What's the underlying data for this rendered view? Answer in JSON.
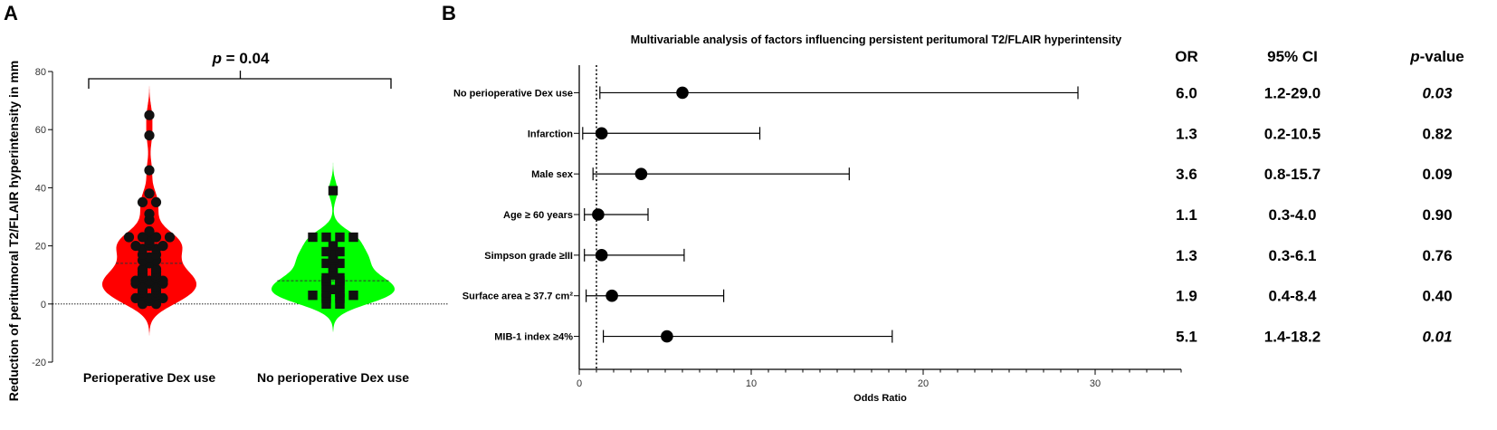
{
  "panel_a_letter": "A",
  "panel_b_letter": "B",
  "chart_data": [
    {
      "type": "violin",
      "ylabel": "Reduction of peritumoral T2/FLAIR hyperintensity in mm",
      "ylim": [
        -20,
        80
      ],
      "yticks": [
        -20,
        0,
        20,
        40,
        60,
        80
      ],
      "reference_line_y": 0,
      "annotation": {
        "label": "p",
        "value": " = 0.04"
      },
      "groups": [
        {
          "name": "Perioperative Dex use",
          "color": "#ff0000",
          "marker": "circle",
          "median": 14,
          "points": [
            65,
            58,
            46,
            38,
            35,
            35,
            31,
            29,
            25,
            23,
            23,
            23,
            23,
            22,
            21,
            20,
            20,
            20,
            19,
            19,
            17,
            17,
            16,
            15,
            15,
            14,
            12,
            12,
            11,
            11,
            10,
            10,
            9,
            9,
            8,
            8,
            8,
            7,
            7,
            7,
            6,
            6,
            5,
            5,
            4,
            4,
            3,
            3,
            2,
            2,
            2,
            1,
            0,
            0
          ]
        },
        {
          "name": "No perioperative Dex use",
          "color": "#00ff00",
          "marker": "square",
          "median": 8,
          "points": [
            39,
            23,
            23,
            23,
            23,
            20,
            18,
            18,
            17,
            16,
            15,
            14,
            14,
            13,
            11,
            10,
            9,
            9,
            8,
            8,
            7,
            7,
            6,
            6,
            5,
            4,
            4,
            3,
            3,
            3,
            3,
            2,
            2,
            0,
            0
          ]
        }
      ]
    },
    {
      "type": "forest",
      "title": "Multivariable analysis of factors influencing persistent peritumoral T2/FLAIR hyperintensity",
      "xlabel": "Odds Ratio",
      "xlim": [
        0,
        35
      ],
      "xticks": [
        0,
        10,
        20,
        30
      ],
      "reference_line_x": 1,
      "column_headers": {
        "or": "OR",
        "ci": "95% CI",
        "p_main": "p",
        "p_suffix": "-value"
      },
      "rows": [
        {
          "factor": "No perioperative Dex use",
          "or": 6.0,
          "lo": 1.2,
          "hi": 29.0,
          "or_text": "6.0",
          "ci_text": "1.2-29.0",
          "p_text": "0.03",
          "significant": true
        },
        {
          "factor": "Infarction",
          "or": 1.3,
          "lo": 0.2,
          "hi": 10.5,
          "or_text": "1.3",
          "ci_text": "0.2-10.5",
          "p_text": "0.82",
          "significant": false
        },
        {
          "factor": "Male sex",
          "or": 3.6,
          "lo": 0.8,
          "hi": 15.7,
          "or_text": "3.6",
          "ci_text": "0.8-15.7",
          "p_text": "0.09",
          "significant": false
        },
        {
          "factor": "Age ≥ 60 years",
          "or": 1.1,
          "lo": 0.3,
          "hi": 4.0,
          "or_text": "1.1",
          "ci_text": "0.3-4.0",
          "p_text": "0.90",
          "significant": false
        },
        {
          "factor": "Simpson grade ≥III",
          "or": 1.3,
          "lo": 0.3,
          "hi": 6.1,
          "or_text": "1.3",
          "ci_text": "0.3-6.1",
          "p_text": "0.76",
          "significant": false
        },
        {
          "factor": "Surface area ≥ 37.7 cm²",
          "or": 1.9,
          "lo": 0.4,
          "hi": 8.4,
          "or_text": "1.9",
          "ci_text": "0.4-8.4",
          "p_text": "0.40",
          "significant": false
        },
        {
          "factor": "MIB-1 index ≥4%",
          "or": 5.1,
          "lo": 1.4,
          "hi": 18.2,
          "or_text": "5.1",
          "ci_text": "1.4-18.2",
          "p_text": "0.01",
          "significant": true
        }
      ]
    }
  ]
}
